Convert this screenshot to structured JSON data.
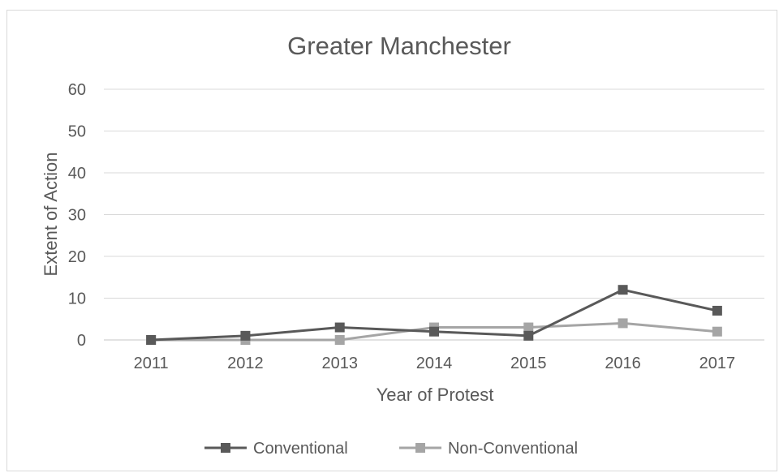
{
  "chart_data": {
    "type": "line",
    "title": "Greater Manchester",
    "xlabel": "Year of Protest",
    "ylabel": "Extent of Action",
    "categories": [
      "2011",
      "2012",
      "2013",
      "2014",
      "2015",
      "2016",
      "2017"
    ],
    "ylim": [
      0,
      60
    ],
    "yticks": [
      "0",
      "10",
      "20",
      "30",
      "40",
      "50",
      "60"
    ],
    "grid": true,
    "legend_position": "bottom",
    "series": [
      {
        "name": "Conventional",
        "values": [
          0,
          1,
          3,
          2,
          1,
          12,
          7
        ],
        "color": "#595959"
      },
      {
        "name": "Non-Conventional",
        "values": [
          0,
          0,
          0,
          3,
          3,
          4,
          2
        ],
        "color": "#a5a5a5"
      }
    ]
  }
}
